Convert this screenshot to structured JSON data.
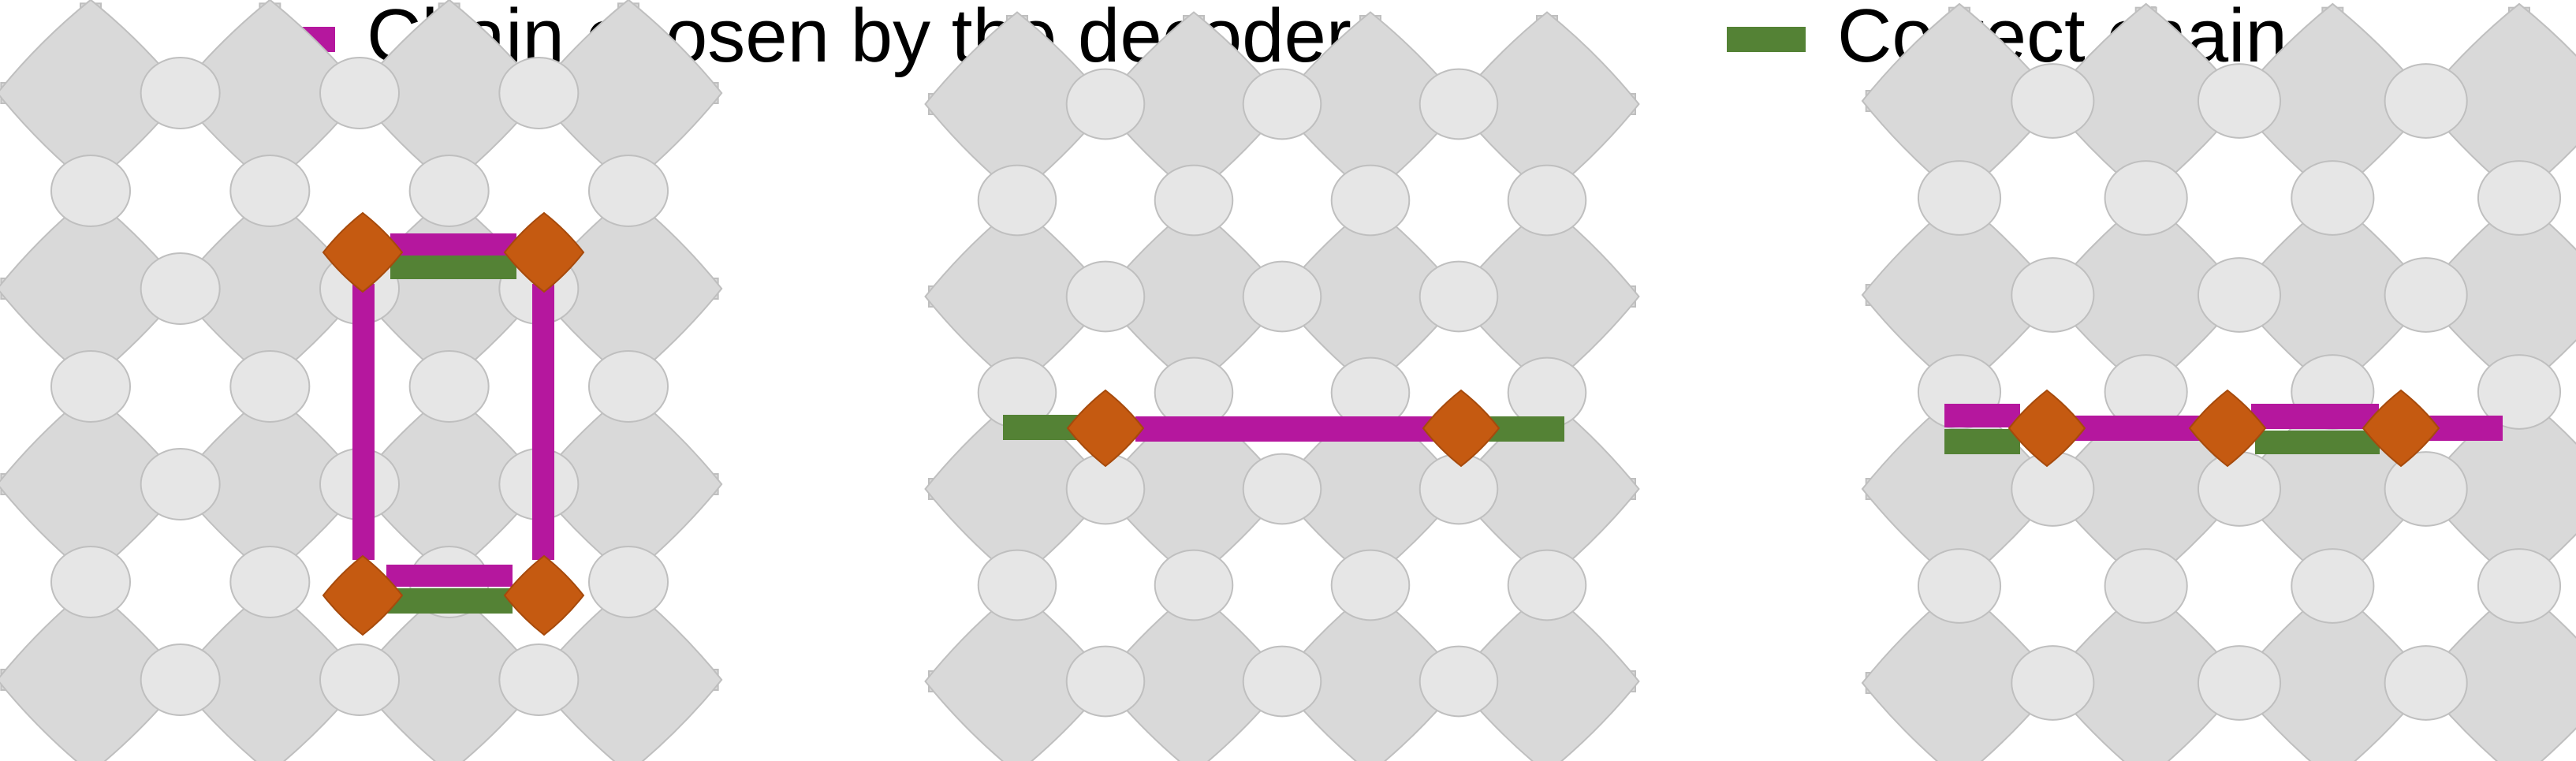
{
  "legend": {
    "decoder_label": "Chain chosen by the decoder",
    "correct_label": "Correct chain"
  },
  "colors": {
    "background": "#ffffff",
    "lattice_fill": "#d9d9d9",
    "lattice_stroke": "#bfbfbf",
    "defect_fill": "#c55a11",
    "decoder_chain": "#b5179e",
    "correct_chain": "#548235"
  },
  "panels": [
    {
      "id": "left-panel",
      "grid": "5x5 star lattice",
      "defects": 4,
      "decoder_chain": "closed loop",
      "correct_chain": "two short horizontal segments"
    },
    {
      "id": "middle-panel",
      "grid": "5x5 star lattice",
      "defects": 2,
      "decoder_chain": "long horizontal segment between defects",
      "correct_chain": "segments to boundaries"
    },
    {
      "id": "right-panel",
      "grid": "5x5 star lattice",
      "defects": 3,
      "decoder_chain": "alternating row segments",
      "correct_chain": "alternating row segments"
    }
  ]
}
